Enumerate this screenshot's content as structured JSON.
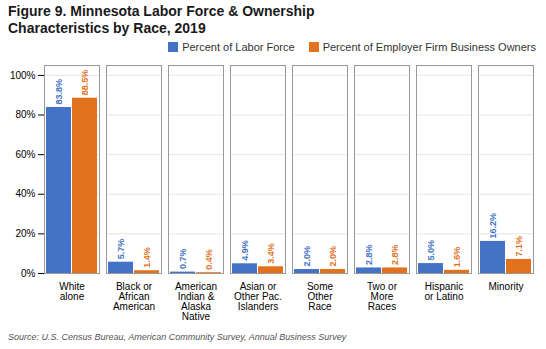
{
  "chart_data": {
    "type": "bar",
    "title": "Figure 9. Minnesota Labor Force & Ownership\nCharacteristics by Race, 2019",
    "categories": [
      "White\nalone",
      "Black or\nAfrican\nAmerican",
      "American\nIndian &\nAlaska\nNative",
      "Asian or\nOther Pac.\nIslanders",
      "Some\nOther\nRace",
      "Two or\nMore\nRaces",
      "Hispanic\nor Latino",
      "Minority"
    ],
    "series": [
      {
        "name": "Percent of Labor Force",
        "color": "#4472C4",
        "values": [
          83.8,
          5.7,
          0.7,
          4.9,
          2.0,
          2.8,
          5.0,
          16.2
        ],
        "value_labels": [
          "83.8%",
          "5.7%",
          "0.7%",
          "4.9%",
          "2.0%",
          "2.8%",
          "5.0%",
          "16.2%"
        ]
      },
      {
        "name": "Percent of Employer Firm Business Owners",
        "color": "#E2711D",
        "values": [
          88.5,
          1.4,
          0.4,
          3.4,
          2.0,
          2.8,
          1.6,
          7.1
        ],
        "value_labels": [
          "88.5%",
          "1.4%",
          "0.4%",
          "3.4%",
          "2.0%",
          "2.8%",
          "1.6%",
          "7.1%"
        ]
      }
    ],
    "ylim": [
      0,
      105
    ],
    "yticks": [
      {
        "value": 0,
        "label": "0%"
      },
      {
        "value": 20,
        "label": "20%"
      },
      {
        "value": 40,
        "label": "40%"
      },
      {
        "value": 60,
        "label": "60%"
      },
      {
        "value": 80,
        "label": "80%"
      },
      {
        "value": 100,
        "label": "100%"
      }
    ],
    "grid": true,
    "legend": "upper right",
    "data_labels": true,
    "source": "Source: U.S. Census Bureau, American Community Survey, Annual Business Survey"
  }
}
